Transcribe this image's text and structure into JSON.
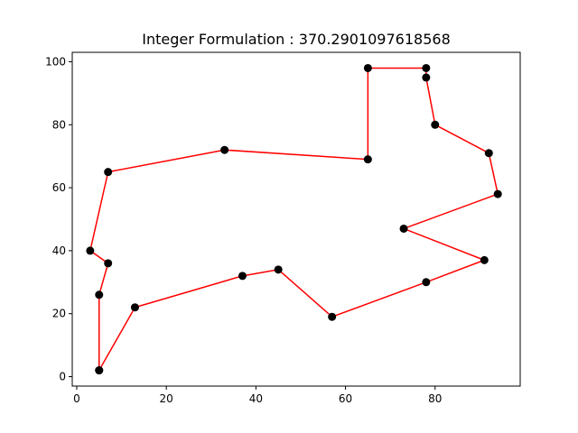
{
  "chart_data": {
    "type": "line",
    "title": "Integer Formulation : 370.2901097618568",
    "xlabel": "",
    "ylabel": "",
    "xlim": [
      -1,
      99
    ],
    "ylim": [
      -3,
      103
    ],
    "xticks": [
      0,
      20,
      40,
      60,
      80
    ],
    "yticks": [
      0,
      20,
      40,
      60,
      80,
      100
    ],
    "grid": false,
    "legend": "none",
    "line_color": "#ff0000",
    "marker_color": "#000000",
    "series": [
      {
        "x": [
          5,
          13,
          37,
          45,
          57,
          78,
          91,
          73,
          94,
          92,
          80,
          78,
          78,
          65,
          65,
          33,
          7,
          3,
          7,
          5,
          5
        ],
        "y": [
          2,
          22,
          32,
          34,
          19,
          30,
          37,
          47,
          58,
          71,
          80,
          95,
          98,
          98,
          69,
          72,
          65,
          40,
          36,
          26,
          2
        ]
      }
    ]
  }
}
